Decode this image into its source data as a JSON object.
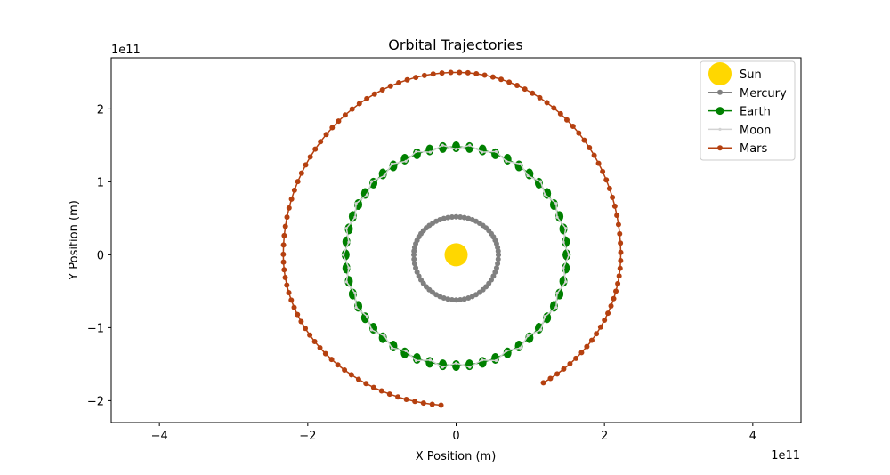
{
  "chart_data": {
    "type": "line",
    "title": "Orbital Trajectories",
    "xlabel": "X Position (m)",
    "ylabel": "Y Position (m)",
    "x_offset_text": "1e11",
    "y_offset_text": "1e11",
    "xlim": [
      -4.65,
      4.65
    ],
    "ylim": [
      -2.3,
      2.7
    ],
    "x_ticks": [
      {
        "v": -4,
        "label": "−4"
      },
      {
        "v": -2,
        "label": "−2"
      },
      {
        "v": 0,
        "label": "0"
      },
      {
        "v": 2,
        "label": "2"
      },
      {
        "v": 4,
        "label": "4"
      }
    ],
    "y_ticks": [
      {
        "v": -2,
        "label": "−2"
      },
      {
        "v": -1,
        "label": "−1"
      },
      {
        "v": 0,
        "label": "0"
      },
      {
        "v": 1,
        "label": "1"
      },
      {
        "v": 2,
        "label": "2"
      }
    ],
    "grid": false,
    "legend_position": "upper right",
    "series": [
      {
        "name": "Sun",
        "color": "#FFD700",
        "marker": "circle-large",
        "points": [
          [
            0,
            0
          ]
        ]
      },
      {
        "name": "Mercury",
        "color": "#808080",
        "marker": "circle",
        "orbit": {
          "rx": 0.57,
          "ry_top": 0.52,
          "ry_bottom": 0.62,
          "cx": 0,
          "cy": 0,
          "start_deg": 0,
          "sweep_deg": 360,
          "n": 64
        }
      },
      {
        "name": "Earth",
        "color": "#008000",
        "marker": "circle",
        "orbit": {
          "rx": 1.49,
          "ry_top": 1.48,
          "ry_bottom": 1.52,
          "cx": 0,
          "cy": 0,
          "start_deg": 0,
          "sweep_deg": 360,
          "n": 52
        }
      },
      {
        "name": "Moon",
        "color": "#D3D3D3",
        "marker": "dot",
        "orbit": {
          "rx": 1.49,
          "ry_top": 1.48,
          "ry_bottom": 1.52,
          "cx": 0,
          "cy": 0,
          "start_deg": 0,
          "sweep_deg": 360,
          "n": 52,
          "wobble": 0.022
        }
      },
      {
        "name": "Mars",
        "color": "#B5400F",
        "marker": "circle",
        "spiral": {
          "x_right": 2.22,
          "x_left": -2.33,
          "y_top": 2.5,
          "y_bottom": -2.07,
          "start_deg": -58,
          "end_deg": 265,
          "n": 110
        }
      }
    ]
  }
}
